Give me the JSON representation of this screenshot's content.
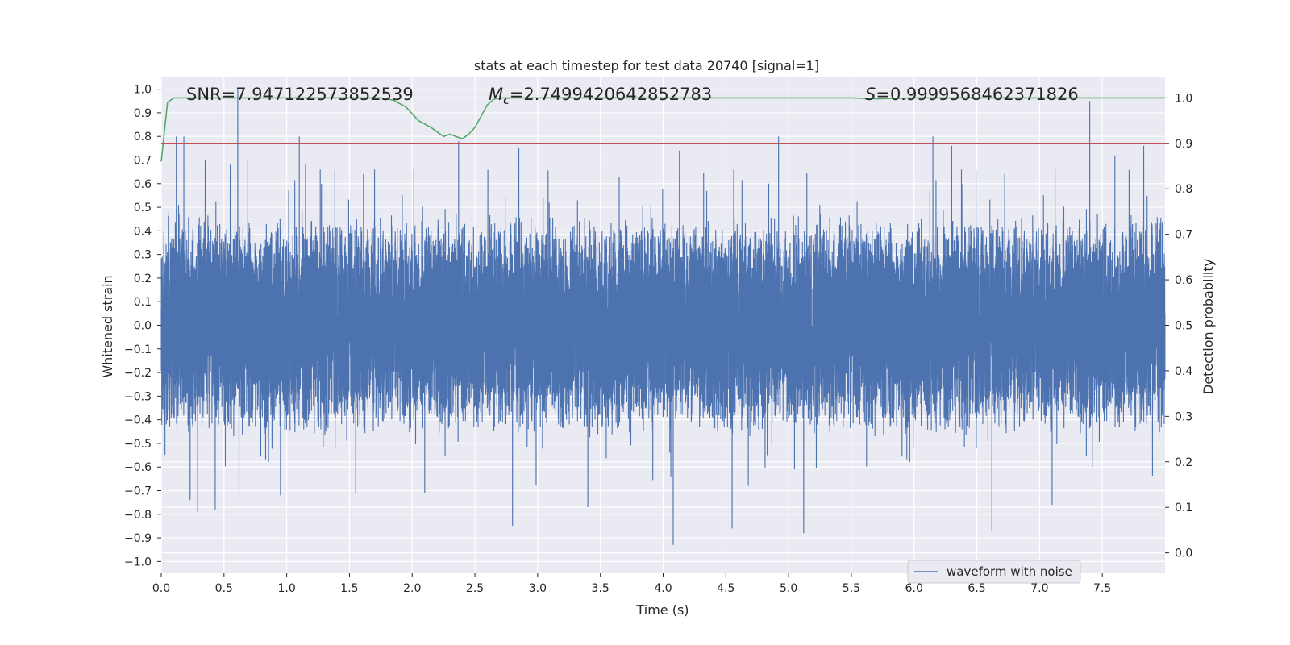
{
  "chart_data": {
    "type": "line",
    "title": "stats at each timestep for test data 20740 [signal=1]",
    "xlabel": "Time (s)",
    "ylabel_left": "Whitened strain",
    "ylabel_right": "Detection probability",
    "xlim": [
      0,
      8
    ],
    "ylim_left": [
      -1.05,
      1.05
    ],
    "ylim_right": [
      -0.045,
      1.045
    ],
    "x_ticks": [
      "0.0",
      "0.5",
      "1.0",
      "1.5",
      "2.0",
      "2.5",
      "3.0",
      "3.5",
      "4.0",
      "4.5",
      "5.0",
      "5.5",
      "6.0",
      "6.5",
      "7.0",
      "7.5"
    ],
    "y_ticks_left": [
      "1.0",
      "0.9",
      "0.8",
      "0.7",
      "0.6",
      "0.5",
      "0.4",
      "0.3",
      "0.2",
      "0.1",
      "0.0",
      "-0.1",
      "-0.2",
      "-0.3",
      "-0.4",
      "-0.5",
      "-0.6",
      "-0.7",
      "-0.8",
      "-0.9",
      "-1.0"
    ],
    "y_ticks_right": [
      "1.0",
      "0.9",
      "0.8",
      "0.7",
      "0.6",
      "0.5",
      "0.4",
      "0.3",
      "0.2",
      "0.1",
      "0.0"
    ],
    "grid": true,
    "legend": {
      "entries": [
        "waveform with noise"
      ],
      "placement": "lower right"
    },
    "annotations": {
      "snr": "SNR=7.947122573852539",
      "mc_symbol": "M",
      "mc_sub": "c",
      "mc_value": "=2.7499420642852783",
      "s_symbol": "S",
      "s_value": "=0.9999568462371826"
    },
    "series": [
      {
        "name": "waveform with noise",
        "axis": "left",
        "kind": "noise",
        "color": "#4c72b0",
        "x_range": [
          0.0,
          8.0
        ],
        "sample_rate": 2048,
        "envelope": 0.33,
        "peaks": [
          [
            0.06,
            0.48
          ],
          [
            0.12,
            0.8
          ],
          [
            0.18,
            0.8
          ],
          [
            0.23,
            -0.74
          ],
          [
            0.29,
            -0.79
          ],
          [
            0.35,
            0.7
          ],
          [
            0.43,
            -0.78
          ],
          [
            0.55,
            0.68
          ],
          [
            0.61,
            1.0
          ],
          [
            0.62,
            -0.72
          ],
          [
            0.69,
            0.7
          ],
          [
            0.95,
            -0.72
          ],
          [
            1.1,
            0.8
          ],
          [
            1.15,
            0.68
          ],
          [
            1.55,
            -0.71
          ],
          [
            1.7,
            0.66
          ],
          [
            2.1,
            -0.71
          ],
          [
            2.37,
            0.78
          ],
          [
            2.8,
            -0.85
          ],
          [
            2.85,
            0.75
          ],
          [
            3.4,
            -0.77
          ],
          [
            3.65,
            0.63
          ],
          [
            4.08,
            -0.93
          ],
          [
            4.13,
            0.74
          ],
          [
            4.55,
            -0.86
          ],
          [
            4.92,
            0.8
          ],
          [
            5.12,
            -0.88
          ],
          [
            6.15,
            0.8
          ],
          [
            6.3,
            0.76
          ],
          [
            6.62,
            -0.87
          ],
          [
            7.1,
            -0.76
          ],
          [
            7.4,
            0.95
          ],
          [
            7.42,
            -0.6
          ],
          [
            7.6,
            0.72
          ],
          [
            7.9,
            -0.64
          ],
          [
            7.83,
            0.76
          ]
        ]
      },
      {
        "name": "",
        "axis": "right",
        "color": "#55a868",
        "x": [
          0.0,
          0.05,
          0.1,
          0.2,
          0.4,
          0.8,
          1.2,
          1.6,
          1.75,
          1.85,
          1.95,
          2.05,
          2.15,
          2.2,
          2.25,
          2.3,
          2.35,
          2.4,
          2.45,
          2.5,
          2.55,
          2.6,
          2.65,
          2.7,
          2.8,
          3.0,
          4.0,
          5.0,
          5.5,
          5.7,
          6.0,
          7.0,
          8.0
        ],
        "y": [
          0.86,
          0.99,
          1.0,
          1.0,
          1.0,
          1.0,
          1.0,
          1.0,
          1.0,
          0.995,
          0.98,
          0.95,
          0.935,
          0.925,
          0.915,
          0.92,
          0.915,
          0.91,
          0.92,
          0.935,
          0.96,
          0.985,
          0.997,
          1.0,
          1.0,
          1.0,
          1.0,
          1.0,
          1.0,
          0.998,
          1.0,
          1.0,
          1.0
        ]
      },
      {
        "name": "",
        "axis": "right",
        "color": "#c44e52",
        "x": [
          0.0,
          8.0
        ],
        "y": [
          0.9,
          0.9
        ]
      }
    ]
  }
}
